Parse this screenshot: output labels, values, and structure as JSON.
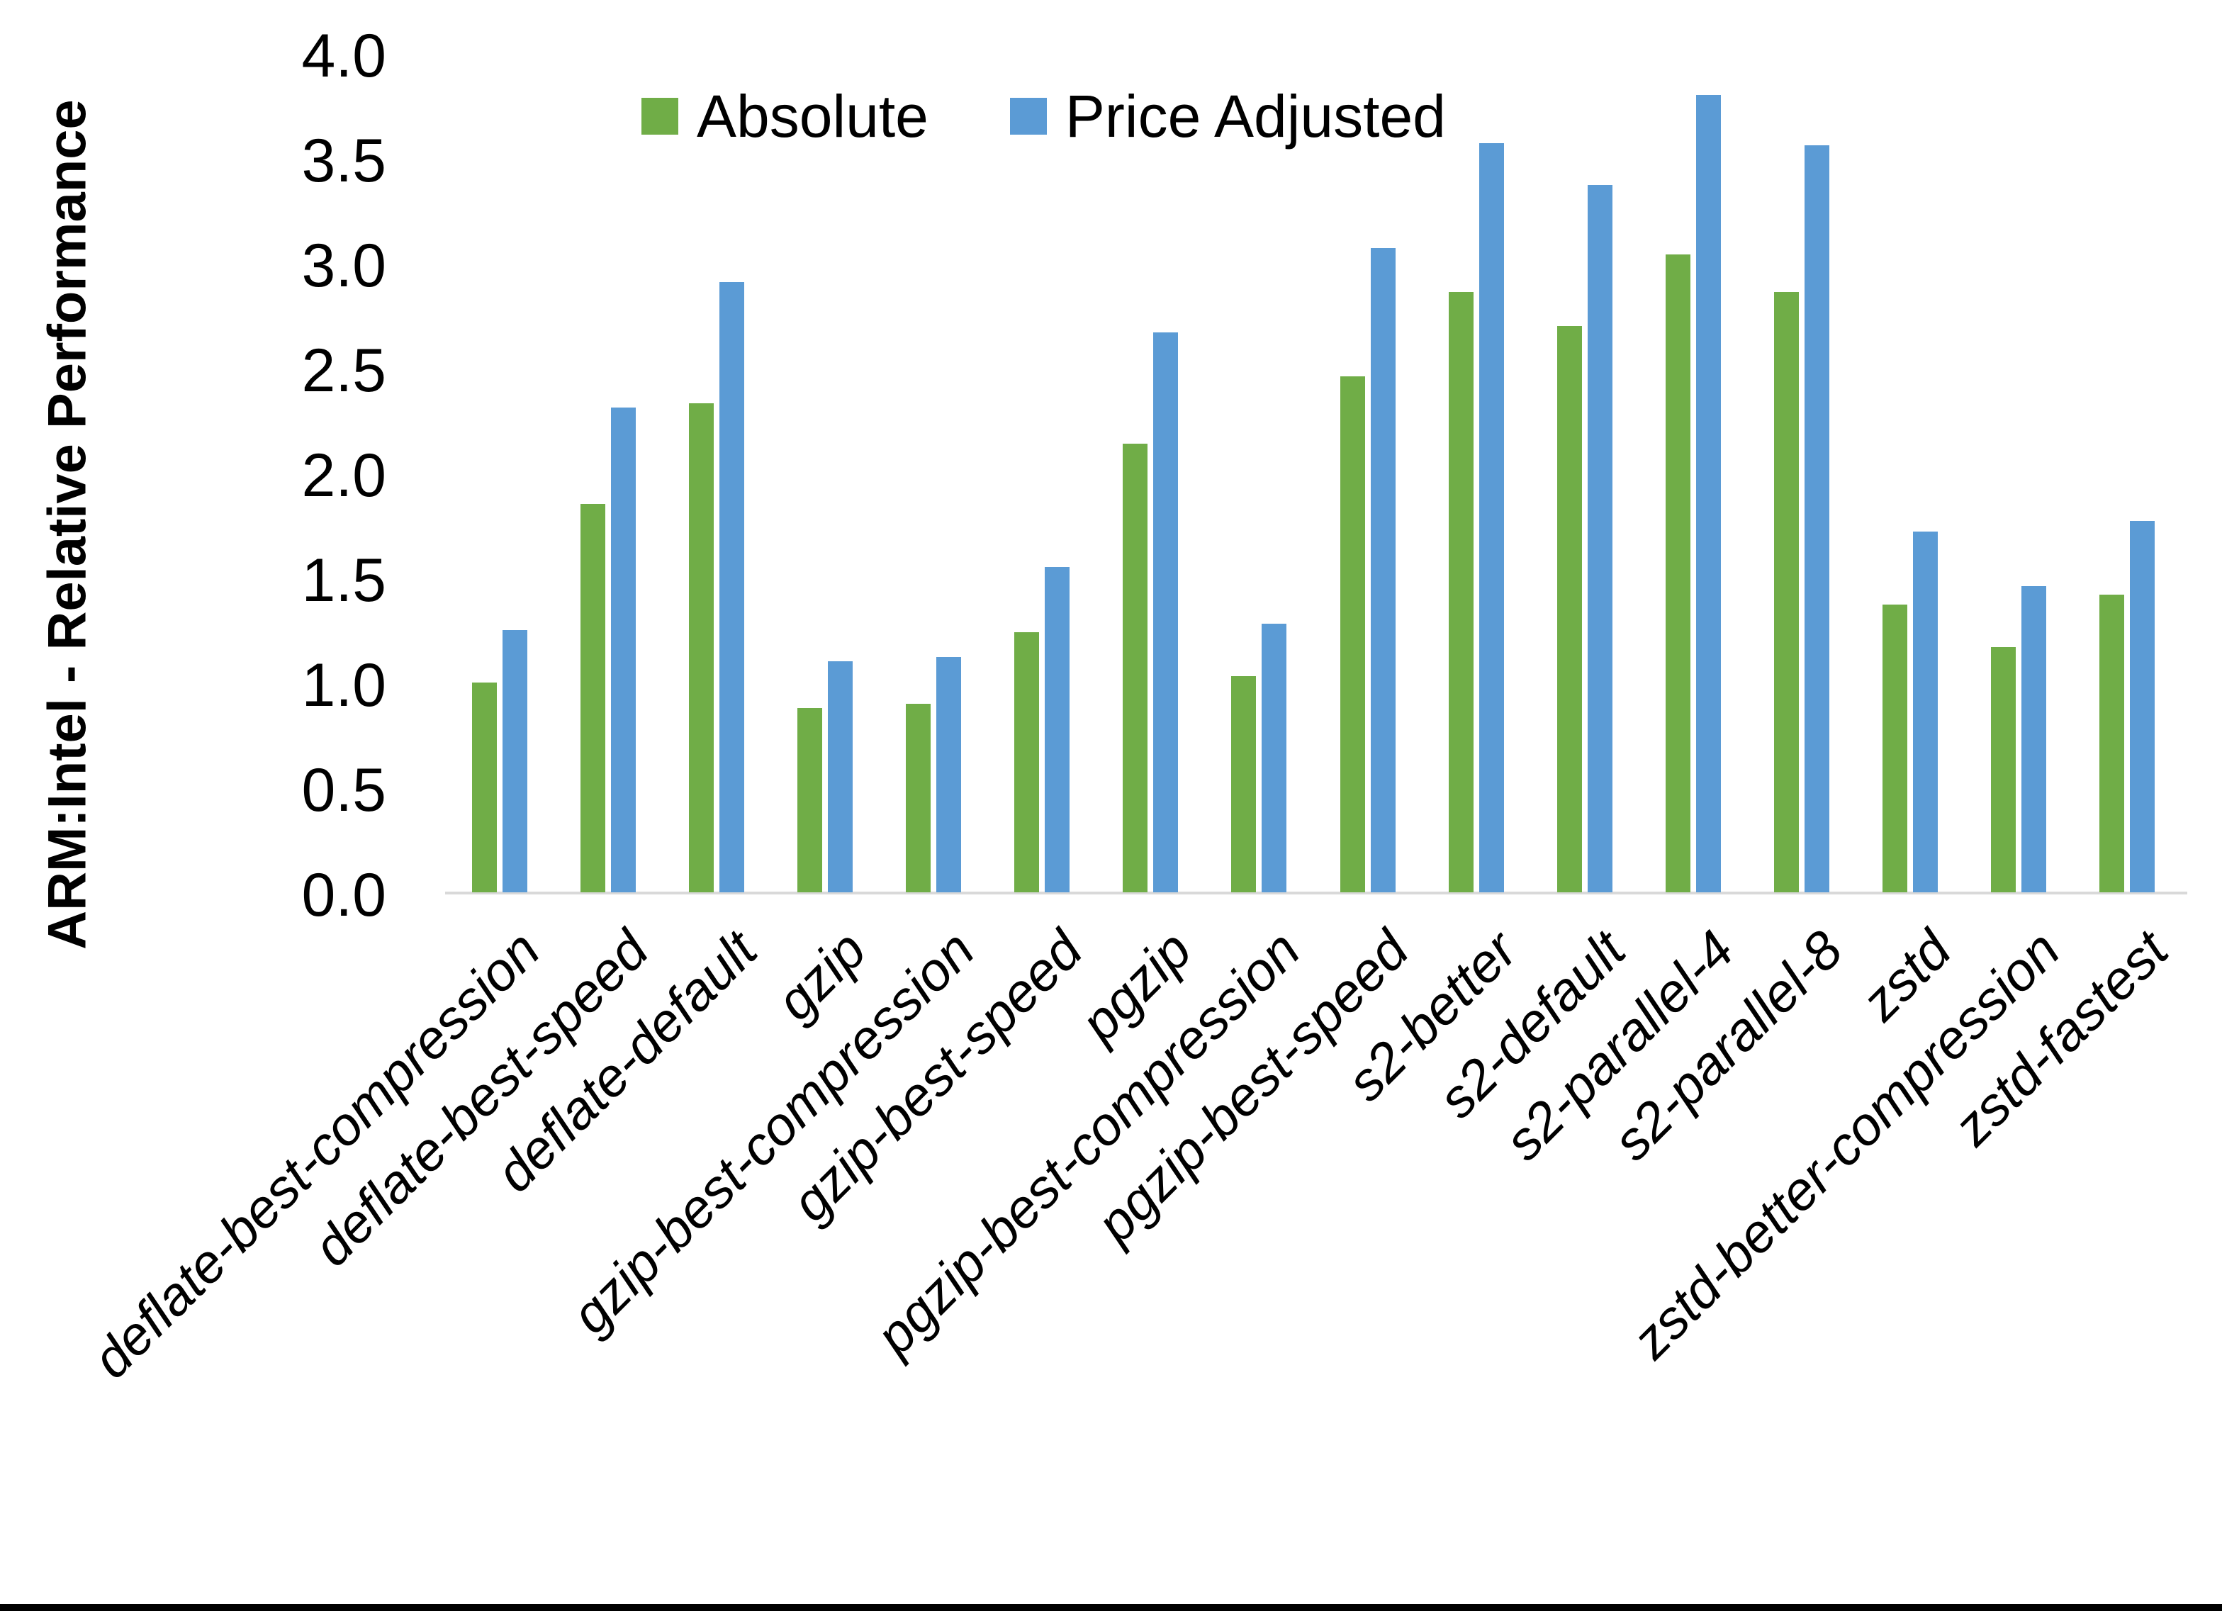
{
  "chart_data": {
    "type": "bar",
    "title": "",
    "ylabel": "ARM:Intel - Relative Performance",
    "xlabel": "",
    "ylim": [
      0.0,
      4.0
    ],
    "ytick_step": 0.5,
    "ytick_labels": [
      "0.0",
      "0.5",
      "1.0",
      "1.5",
      "2.0",
      "2.5",
      "3.0",
      "3.5",
      "4.0"
    ],
    "grid": false,
    "legend_position": "top-center",
    "categories": [
      "deflate-best-compression",
      "deflate-best-speed",
      "deflate-default",
      "gzip",
      "gzip-best-compression",
      "gzip-best-speed",
      "pgzip",
      "pgzip-best-compression",
      "pgzip-best-speed",
      "s2-better",
      "s2-default",
      "s2-parallel-4",
      "s2-parallel-8",
      "zstd",
      "zstd-better-compression",
      "zstd-fastest"
    ],
    "series": [
      {
        "name": "Absolute",
        "color": "#70AD47",
        "values": [
          1.0,
          1.85,
          2.33,
          0.88,
          0.9,
          1.24,
          2.14,
          1.03,
          2.46,
          2.86,
          2.7,
          3.04,
          2.86,
          1.37,
          1.17,
          1.42
        ]
      },
      {
        "name": "Price Adjusted",
        "color": "#5B9BD5",
        "values": [
          1.25,
          2.31,
          2.91,
          1.1,
          1.12,
          1.55,
          2.67,
          1.28,
          3.07,
          3.57,
          3.37,
          3.8,
          3.56,
          1.72,
          1.46,
          1.77
        ]
      }
    ],
    "colors": {
      "axis_line": "#D9D9D9",
      "text": "#000000",
      "background": "#FFFFFF",
      "bottom_border": "#000000"
    }
  }
}
